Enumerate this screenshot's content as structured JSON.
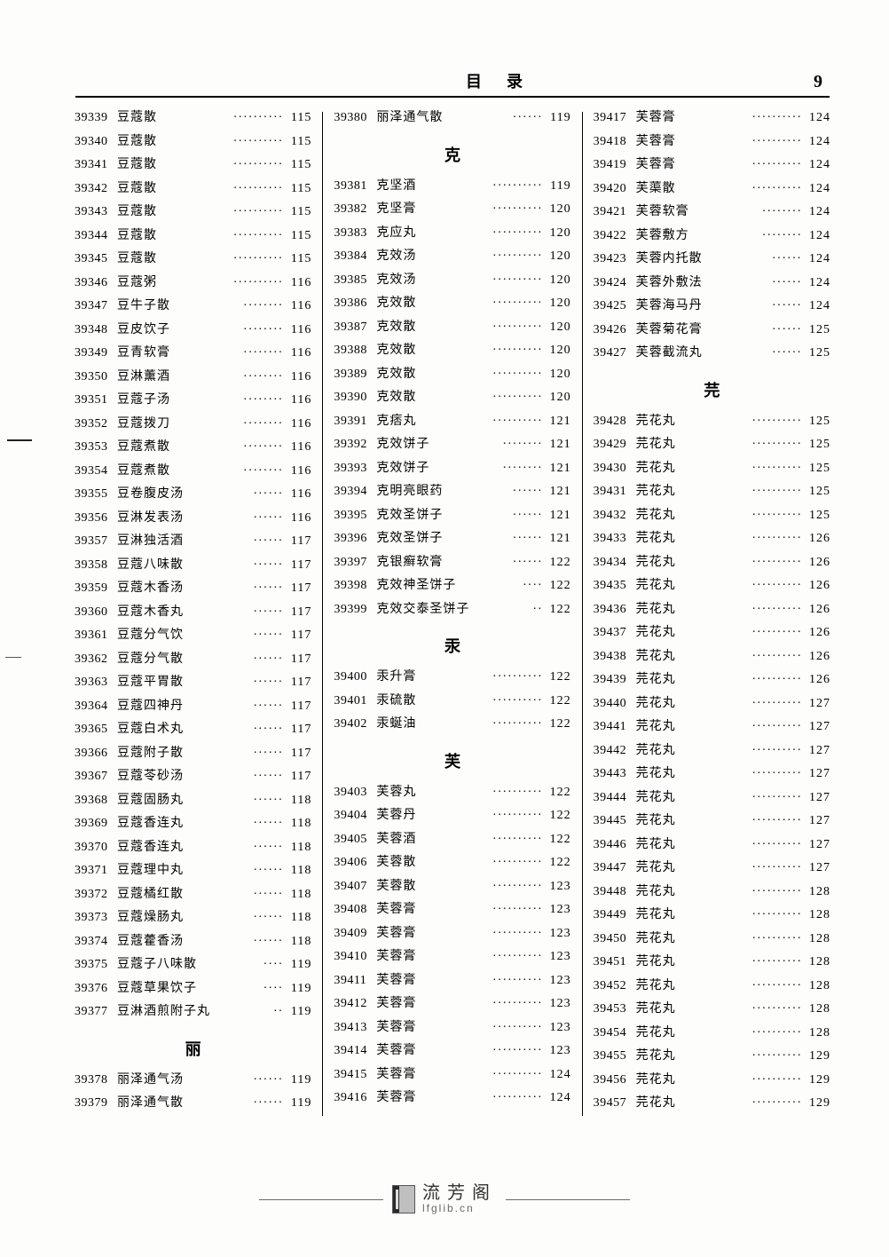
{
  "header": {
    "title": "目录",
    "page": "9"
  },
  "footer": {
    "zh": "流芳阁",
    "en": "lfglib.cn"
  },
  "columns": [
    {
      "blocks": [
        {
          "type": "entries",
          "items": [
            {
              "id": "39339",
              "name": "豆蔻散",
              "page": "115"
            },
            {
              "id": "39340",
              "name": "豆蔻散",
              "page": "115"
            },
            {
              "id": "39341",
              "name": "豆蔻散",
              "page": "115"
            },
            {
              "id": "39342",
              "name": "豆蔻散",
              "page": "115"
            },
            {
              "id": "39343",
              "name": "豆蔻散",
              "page": "115"
            },
            {
              "id": "39344",
              "name": "豆蔻散",
              "page": "115"
            },
            {
              "id": "39345",
              "name": "豆蔻散",
              "page": "115"
            },
            {
              "id": "39346",
              "name": "豆蔻粥",
              "page": "116"
            },
            {
              "id": "39347",
              "name": "豆牛子散",
              "page": "116"
            },
            {
              "id": "39348",
              "name": "豆皮饮子",
              "page": "116"
            },
            {
              "id": "39349",
              "name": "豆青软膏",
              "page": "116"
            },
            {
              "id": "39350",
              "name": "豆淋薰酒",
              "page": "116"
            },
            {
              "id": "39351",
              "name": "豆蔻子汤",
              "page": "116"
            },
            {
              "id": "39352",
              "name": "豆蔻拨刀",
              "page": "116"
            },
            {
              "id": "39353",
              "name": "豆蔻煮散",
              "page": "116"
            },
            {
              "id": "39354",
              "name": "豆蔻煮散",
              "page": "116"
            },
            {
              "id": "39355",
              "name": "豆卷腹皮汤",
              "page": "116"
            },
            {
              "id": "39356",
              "name": "豆淋发表汤",
              "page": "116"
            },
            {
              "id": "39357",
              "name": "豆淋独活酒",
              "page": "117"
            },
            {
              "id": "39358",
              "name": "豆蔻八味散",
              "page": "117"
            },
            {
              "id": "39359",
              "name": "豆蔻木香汤",
              "page": "117"
            },
            {
              "id": "39360",
              "name": "豆蔻木香丸",
              "page": "117"
            },
            {
              "id": "39361",
              "name": "豆蔻分气饮",
              "page": "117"
            },
            {
              "id": "39362",
              "name": "豆蔻分气散",
              "page": "117"
            },
            {
              "id": "39363",
              "name": "豆蔻平胃散",
              "page": "117"
            },
            {
              "id": "39364",
              "name": "豆蔻四神丹",
              "page": "117"
            },
            {
              "id": "39365",
              "name": "豆蔻白术丸",
              "page": "117"
            },
            {
              "id": "39366",
              "name": "豆蔻附子散",
              "page": "117"
            },
            {
              "id": "39367",
              "name": "豆蔻苓砂汤",
              "page": "117"
            },
            {
              "id": "39368",
              "name": "豆蔻固肠丸",
              "page": "118"
            },
            {
              "id": "39369",
              "name": "豆蔻香连丸",
              "page": "118"
            },
            {
              "id": "39370",
              "name": "豆蔻香连丸",
              "page": "118"
            },
            {
              "id": "39371",
              "name": "豆蔻理中丸",
              "page": "118"
            },
            {
              "id": "39372",
              "name": "豆蔻橘红散",
              "page": "118"
            },
            {
              "id": "39373",
              "name": "豆蔻燥肠丸",
              "page": "118"
            },
            {
              "id": "39374",
              "name": "豆蔻藿香汤",
              "page": "118"
            },
            {
              "id": "39375",
              "name": "豆蔻子八味散",
              "page": "119"
            },
            {
              "id": "39376",
              "name": "豆蔻草果饮子",
              "page": "119"
            },
            {
              "id": "39377",
              "name": "豆淋酒煎附子丸",
              "page": "119"
            }
          ]
        },
        {
          "type": "section",
          "label": "丽"
        },
        {
          "type": "entries",
          "items": [
            {
              "id": "39378",
              "name": "丽泽通气汤",
              "page": "119"
            },
            {
              "id": "39379",
              "name": "丽泽通气散",
              "page": "119"
            }
          ]
        }
      ]
    },
    {
      "blocks": [
        {
          "type": "entries",
          "items": [
            {
              "id": "39380",
              "name": "丽泽通气散",
              "page": "119"
            }
          ]
        },
        {
          "type": "section",
          "label": "克"
        },
        {
          "type": "entries",
          "items": [
            {
              "id": "39381",
              "name": "克坚酒",
              "page": "119"
            },
            {
              "id": "39382",
              "name": "克坚膏",
              "page": "120"
            },
            {
              "id": "39383",
              "name": "克应丸",
              "page": "120"
            },
            {
              "id": "39384",
              "name": "克效汤",
              "page": "120"
            },
            {
              "id": "39385",
              "name": "克效汤",
              "page": "120"
            },
            {
              "id": "39386",
              "name": "克效散",
              "page": "120"
            },
            {
              "id": "39387",
              "name": "克效散",
              "page": "120"
            },
            {
              "id": "39388",
              "name": "克效散",
              "page": "120"
            },
            {
              "id": "39389",
              "name": "克效散",
              "page": "120"
            },
            {
              "id": "39390",
              "name": "克效散",
              "page": "120"
            },
            {
              "id": "39391",
              "name": "克痞丸",
              "page": "121"
            },
            {
              "id": "39392",
              "name": "克效饼子",
              "page": "121"
            },
            {
              "id": "39393",
              "name": "克效饼子",
              "page": "121"
            },
            {
              "id": "39394",
              "name": "克明亮眼药",
              "page": "121"
            },
            {
              "id": "39395",
              "name": "克效圣饼子",
              "page": "121"
            },
            {
              "id": "39396",
              "name": "克效圣饼子",
              "page": "121"
            },
            {
              "id": "39397",
              "name": "克银癣软膏",
              "page": "122"
            },
            {
              "id": "39398",
              "name": "克效神圣饼子",
              "page": "122"
            },
            {
              "id": "39399",
              "name": "克效交泰圣饼子",
              "page": "122"
            }
          ]
        },
        {
          "type": "section",
          "label": "汞"
        },
        {
          "type": "entries",
          "items": [
            {
              "id": "39400",
              "name": "汞升膏",
              "page": "122"
            },
            {
              "id": "39401",
              "name": "汞硫散",
              "page": "122"
            },
            {
              "id": "39402",
              "name": "汞蜒油",
              "page": "122"
            }
          ]
        },
        {
          "type": "section",
          "label": "芙"
        },
        {
          "type": "entries",
          "items": [
            {
              "id": "39403",
              "name": "芙蓉丸",
              "page": "122"
            },
            {
              "id": "39404",
              "name": "芙蓉丹",
              "page": "122"
            },
            {
              "id": "39405",
              "name": "芙蓉酒",
              "page": "122"
            },
            {
              "id": "39406",
              "name": "芙蓉散",
              "page": "122"
            },
            {
              "id": "39407",
              "name": "芙蓉散",
              "page": "123"
            },
            {
              "id": "39408",
              "name": "芙蓉膏",
              "page": "123"
            },
            {
              "id": "39409",
              "name": "芙蓉膏",
              "page": "123"
            },
            {
              "id": "39410",
              "name": "芙蓉膏",
              "page": "123"
            },
            {
              "id": "39411",
              "name": "芙蓉膏",
              "page": "123"
            },
            {
              "id": "39412",
              "name": "芙蓉膏",
              "page": "123"
            },
            {
              "id": "39413",
              "name": "芙蓉膏",
              "page": "123"
            },
            {
              "id": "39414",
              "name": "芙蓉膏",
              "page": "123"
            },
            {
              "id": "39415",
              "name": "芙蓉膏",
              "page": "124"
            },
            {
              "id": "39416",
              "name": "芙蓉膏",
              "page": "124"
            }
          ]
        }
      ]
    },
    {
      "blocks": [
        {
          "type": "entries",
          "items": [
            {
              "id": "39417",
              "name": "芙蓉膏",
              "page": "124"
            },
            {
              "id": "39418",
              "name": "芙蓉膏",
              "page": "124"
            },
            {
              "id": "39419",
              "name": "芙蓉膏",
              "page": "124"
            },
            {
              "id": "39420",
              "name": "芙蕖散",
              "page": "124"
            },
            {
              "id": "39421",
              "name": "芙蓉软膏",
              "page": "124"
            },
            {
              "id": "39422",
              "name": "芙蓉敷方",
              "page": "124"
            },
            {
              "id": "39423",
              "name": "芙蓉内托散",
              "page": "124"
            },
            {
              "id": "39424",
              "name": "芙蓉外敷法",
              "page": "124"
            },
            {
              "id": "39425",
              "name": "芙蓉海马丹",
              "page": "124"
            },
            {
              "id": "39426",
              "name": "芙蓉菊花膏",
              "page": "125"
            },
            {
              "id": "39427",
              "name": "芙蓉截流丸",
              "page": "125"
            }
          ]
        },
        {
          "type": "section",
          "label": "芫"
        },
        {
          "type": "entries",
          "items": [
            {
              "id": "39428",
              "name": "芫花丸",
              "page": "125"
            },
            {
              "id": "39429",
              "name": "芫花丸",
              "page": "125"
            },
            {
              "id": "39430",
              "name": "芫花丸",
              "page": "125"
            },
            {
              "id": "39431",
              "name": "芫花丸",
              "page": "125"
            },
            {
              "id": "39432",
              "name": "芫花丸",
              "page": "125"
            },
            {
              "id": "39433",
              "name": "芫花丸",
              "page": "126"
            },
            {
              "id": "39434",
              "name": "芫花丸",
              "page": "126"
            },
            {
              "id": "39435",
              "name": "芫花丸",
              "page": "126"
            },
            {
              "id": "39436",
              "name": "芫花丸",
              "page": "126"
            },
            {
              "id": "39437",
              "name": "芫花丸",
              "page": "126"
            },
            {
              "id": "39438",
              "name": "芫花丸",
              "page": "126"
            },
            {
              "id": "39439",
              "name": "芫花丸",
              "page": "126"
            },
            {
              "id": "39440",
              "name": "芫花丸",
              "page": "127"
            },
            {
              "id": "39441",
              "name": "芫花丸",
              "page": "127"
            },
            {
              "id": "39442",
              "name": "芫花丸",
              "page": "127"
            },
            {
              "id": "39443",
              "name": "芫花丸",
              "page": "127"
            },
            {
              "id": "39444",
              "name": "芫花丸",
              "page": "127"
            },
            {
              "id": "39445",
              "name": "芫花丸",
              "page": "127"
            },
            {
              "id": "39446",
              "name": "芫花丸",
              "page": "127"
            },
            {
              "id": "39447",
              "name": "芫花丸",
              "page": "127"
            },
            {
              "id": "39448",
              "name": "芫花丸",
              "page": "128"
            },
            {
              "id": "39449",
              "name": "芫花丸",
              "page": "128"
            },
            {
              "id": "39450",
              "name": "芫花丸",
              "page": "128"
            },
            {
              "id": "39451",
              "name": "芫花丸",
              "page": "128"
            },
            {
              "id": "39452",
              "name": "芫花丸",
              "page": "128"
            },
            {
              "id": "39453",
              "name": "芫花丸",
              "page": "128"
            },
            {
              "id": "39454",
              "name": "芫花丸",
              "page": "128"
            },
            {
              "id": "39455",
              "name": "芫花丸",
              "page": "129"
            },
            {
              "id": "39456",
              "name": "芫花丸",
              "page": "129"
            },
            {
              "id": "39457",
              "name": "芫花丸",
              "page": "129"
            }
          ]
        }
      ]
    }
  ]
}
